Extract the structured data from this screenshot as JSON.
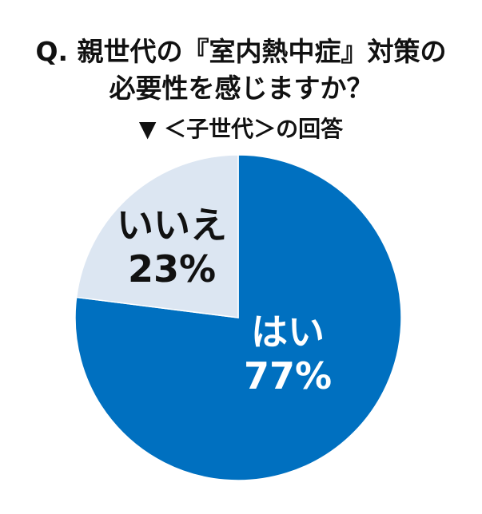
{
  "chart_data": {
    "type": "pie",
    "title": "Q. 親世代の『室内熱中症』対策の",
    "title_line2": "必要性を感じますか？",
    "subtitle": "▼ ＜子世代＞の回答",
    "start": "top",
    "direction": "clockwise",
    "slices": [
      {
        "label": "はい",
        "value": 77,
        "value_label": "77%",
        "color": "#0070C0",
        "text_color": "#FFFFFF"
      },
      {
        "label": "いいえ",
        "value": 23,
        "value_label": "23%",
        "color": "#DCE6F2",
        "text_color": "#111111"
      }
    ]
  }
}
